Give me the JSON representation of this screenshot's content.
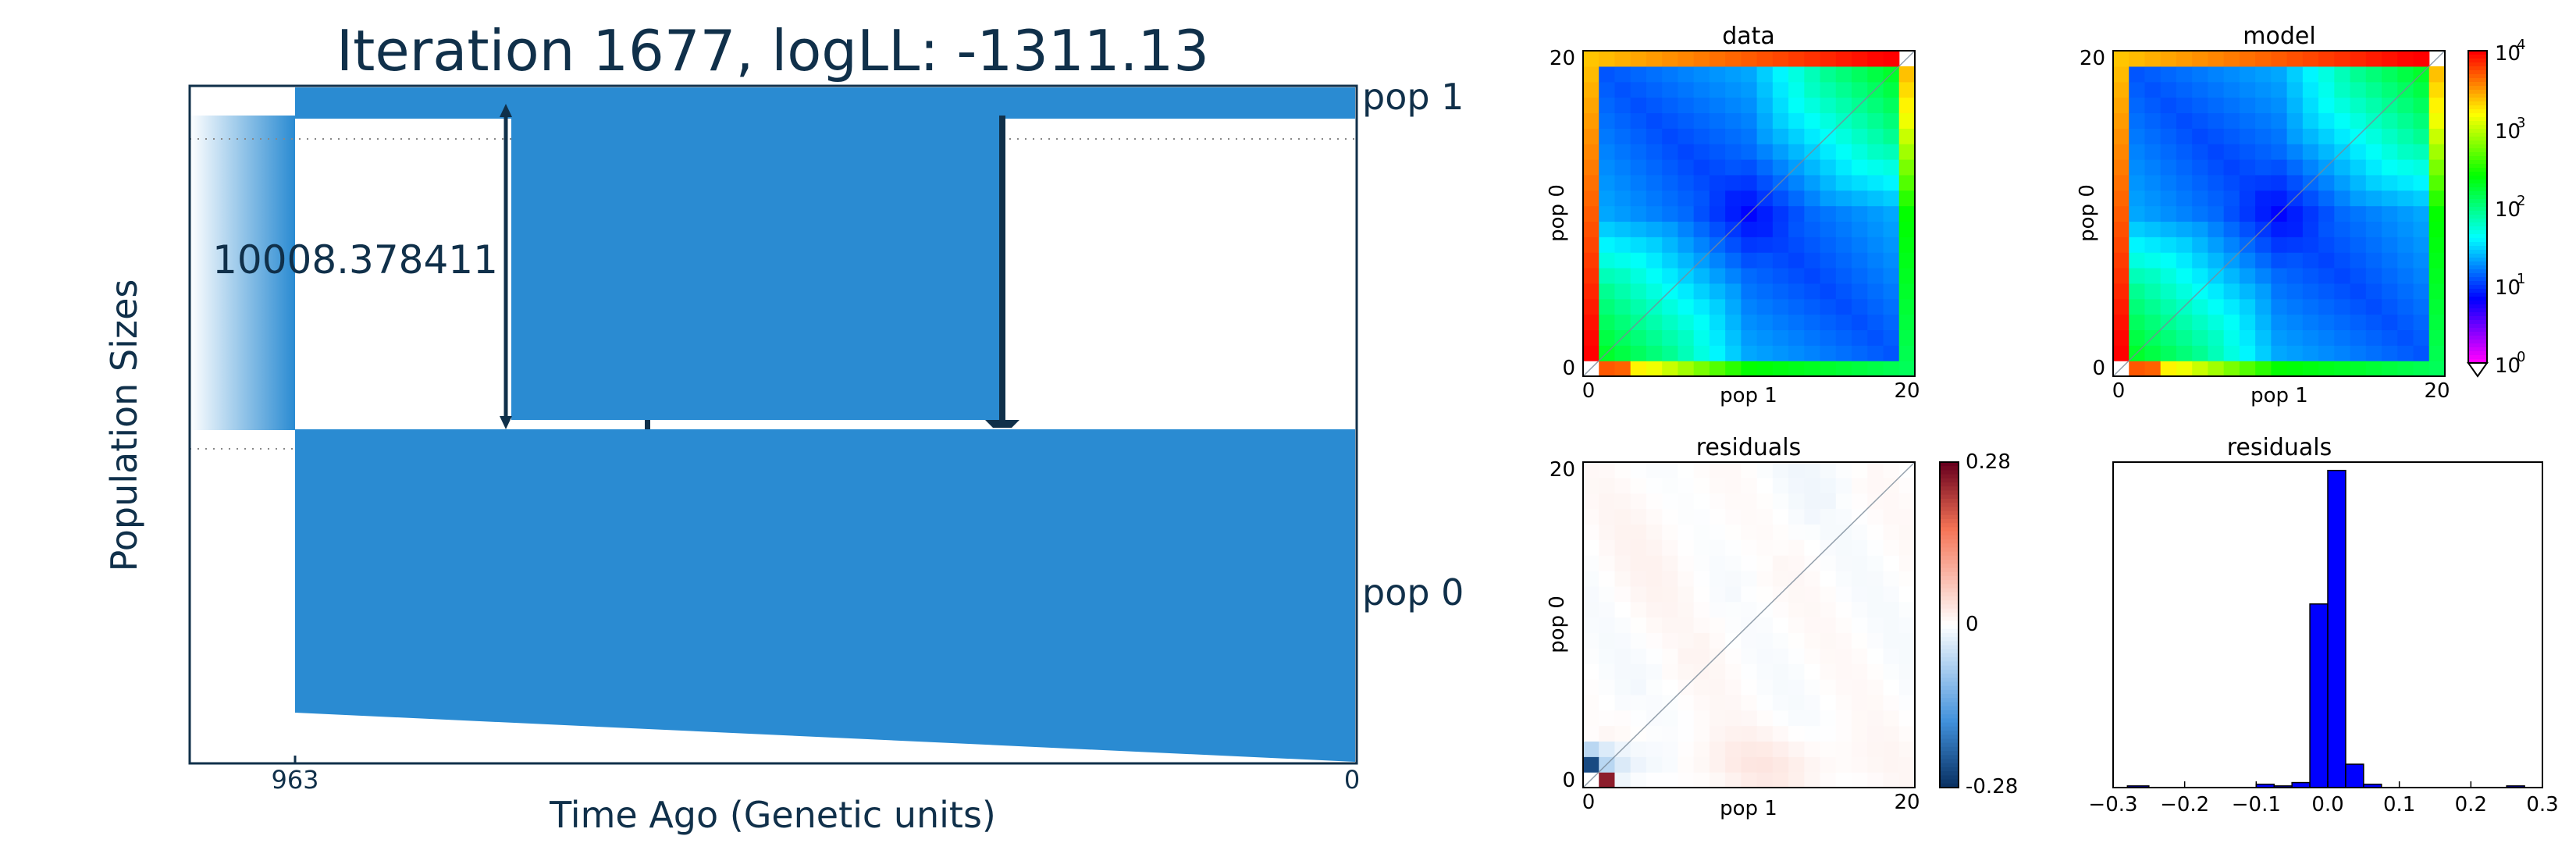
{
  "colors": {
    "demo_blue": "#2a8bd2",
    "arrow_dark": "#10304a",
    "axis_dark": "#0f2a3e",
    "hist_blue": "#0000ff"
  },
  "chart_data": [
    {
      "type": "demographic-model",
      "title": "Iteration 1677, logLL:   -1311.13",
      "xlabel": "Time Ago (Genetic units)",
      "ylabel": "Population Sizes",
      "x_ticks": [
        "963",
        "0"
      ],
      "annotation": "10008.378411",
      "populations": [
        "pop 1",
        "pop 0"
      ],
      "divergence_time": 963,
      "migration_arrows": 3,
      "grid": false
    },
    {
      "type": "heatmap",
      "title": "data",
      "xlabel": "pop 1",
      "ylabel": "pop 0",
      "x_ticks": [
        "0",
        "20"
      ],
      "y_ticks": [
        "0",
        "20"
      ],
      "size": 21,
      "scale": "log"
    },
    {
      "type": "heatmap",
      "title": "model",
      "xlabel": "pop 1",
      "ylabel": "pop 0",
      "x_ticks": [
        "0",
        "20"
      ],
      "y_ticks": [
        "0",
        "20"
      ],
      "size": 21,
      "scale": "log",
      "colorbar_ticks": [
        "10",
        "10",
        "10",
        "10",
        "10"
      ],
      "colorbar_exponents": [
        "4",
        "3",
        "2",
        "1",
        "0"
      ]
    },
    {
      "type": "heatmap",
      "title": "residuals",
      "xlabel": "pop 1",
      "ylabel": "pop 0",
      "x_ticks": [
        "0",
        "20"
      ],
      "y_ticks": [
        "0",
        "20"
      ],
      "size": 21,
      "colorbar_ticks": [
        "0.28",
        "0",
        "-0.28"
      ],
      "vlim": [
        -0.28,
        0.28
      ]
    },
    {
      "type": "bar",
      "title": "residuals",
      "x_ticks": [
        "−0.3",
        "−0.2",
        "−0.1",
        "0.0",
        "0.1",
        "0.2",
        "0.3"
      ],
      "xlim": [
        -0.3,
        0.3
      ],
      "bins": [
        {
          "x0": -0.28,
          "x1": -0.25,
          "count": 1
        },
        {
          "x0": -0.1,
          "x1": -0.075,
          "count": 2
        },
        {
          "x0": -0.075,
          "x1": -0.05,
          "count": 1
        },
        {
          "x0": -0.05,
          "x1": -0.025,
          "count": 3
        },
        {
          "x0": -0.025,
          "x1": 0.0,
          "count": 110
        },
        {
          "x0": 0.0,
          "x1": 0.025,
          "count": 190
        },
        {
          "x0": 0.025,
          "x1": 0.05,
          "count": 14
        },
        {
          "x0": 0.05,
          "x1": 0.075,
          "count": 2
        },
        {
          "x0": 0.25,
          "x1": 0.275,
          "count": 1
        }
      ],
      "ylim": [
        0,
        195
      ]
    }
  ]
}
